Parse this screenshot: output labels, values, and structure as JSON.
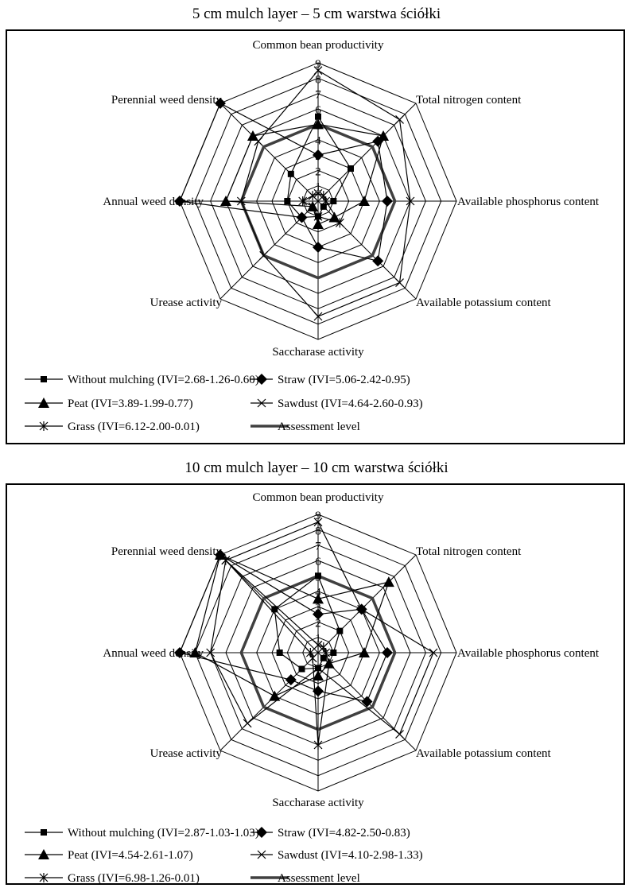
{
  "chart_data": [
    {
      "type": "radar",
      "title": "5 cm mulch layer – 5 cm warstwa ściółki",
      "axes": [
        "Common bean productivity",
        "Total nitrogen content",
        "Available phosphorus content",
        "Available potassium content",
        "Saccharase activity",
        "Urease activity",
        "Annual weed density",
        "Perennial weed density"
      ],
      "rlim": [
        0,
        9
      ],
      "ticks": [
        "1",
        "2",
        "3",
        "4",
        "5",
        "6",
        "7",
        "8",
        "9"
      ],
      "series": [
        {
          "name": "Without mulching (IVI=2.68-1.26-0.60)",
          "marker": "square",
          "values": [
            5.5,
            3.0,
            1.0,
            0.5,
            1.0,
            1.5,
            2.0,
            2.5
          ]
        },
        {
          "name": "Straw  (IVI=5.06-2.42-0.95)",
          "marker": "diamond",
          "values": [
            3.0,
            5.5,
            4.5,
            5.5,
            3.0,
            1.5,
            9.0,
            9.0
          ]
        },
        {
          "name": "Peat (IVI=3.89-1.99-0.77)",
          "marker": "triangle",
          "values": [
            5.0,
            6.0,
            3.0,
            1.5,
            1.5,
            0.5,
            6.0,
            6.0
          ]
        },
        {
          "name": "Sawdust (IVI=4.64-2.60-0.93)",
          "marker": "x",
          "values": [
            8.5,
            7.5,
            6.0,
            7.5,
            7.5,
            5.0,
            5.0,
            5.5
          ]
        },
        {
          "name": "Grass (IVI=6.12-2.00-0.01)",
          "marker": "star",
          "values": [
            0.5,
            0.5,
            0.5,
            2.0,
            1.0,
            0.5,
            1.0,
            0.5
          ]
        }
      ],
      "assessment_level": 5
    },
    {
      "type": "radar",
      "title": "10 cm mulch layer – 10 cm warstwa ściółki",
      "axes": [
        "Common bean productivity",
        "Total nitrogen content",
        "Available phosphorus content",
        "Available potassium content",
        "Saccharase activity",
        "Urease activity",
        "Annual weed density",
        "Perennial weed density"
      ],
      "rlim": [
        0,
        9
      ],
      "ticks": [
        "1",
        "2",
        "3",
        "4",
        "5",
        "6",
        "7",
        "8",
        "9"
      ],
      "series": [
        {
          "name": "Without mulching (IVI=2.87-1.03-1.03)",
          "marker": "square",
          "values": [
            5.0,
            2.0,
            1.0,
            0.5,
            1.0,
            1.5,
            2.5,
            4.0
          ]
        },
        {
          "name": "Straw (IVI=4.82-2.50-0.83)",
          "marker": "diamond",
          "values": [
            2.5,
            4.0,
            4.5,
            4.5,
            2.5,
            2.5,
            9.0,
            9.0
          ]
        },
        {
          "name": "Peat (IVI=4.54-2.61-1.07)",
          "marker": "triangle",
          "values": [
            3.5,
            6.5,
            3.0,
            1.0,
            1.5,
            4.0,
            8.0,
            9.0
          ]
        },
        {
          "name": "Sawdust (IVI=4.10-2.98-1.33)",
          "marker": "x",
          "values": [
            8.5,
            4.0,
            7.5,
            7.5,
            1.0,
            6.5,
            7.0,
            8.5
          ]
        },
        {
          "name": "Grass (IVI=6.98-1.26-0.01)",
          "marker": "star",
          "values": [
            0.5,
            0.5,
            0.5,
            1.0,
            6.0,
            0.5,
            0.5,
            8.5
          ]
        }
      ],
      "assessment_level": 5
    }
  ],
  "legend_assessment_label": "Assessment level",
  "colors": {
    "series": "#000000",
    "assessment": "#404040",
    "grid": "#000000"
  }
}
